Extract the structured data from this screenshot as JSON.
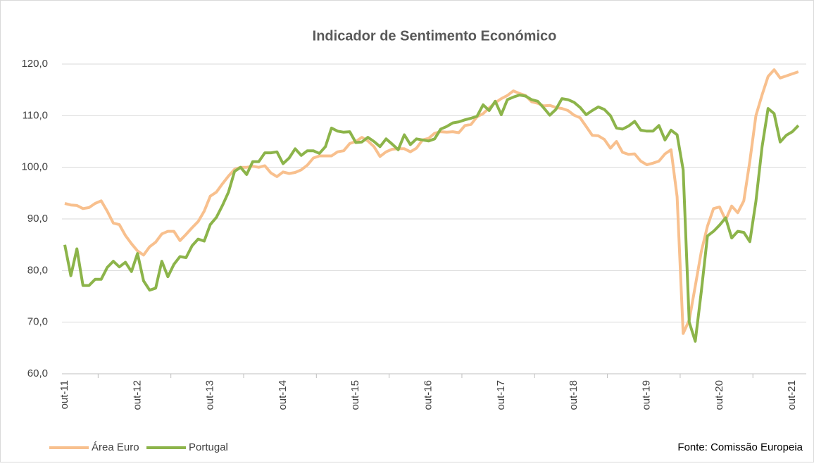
{
  "chart_data": {
    "type": "line",
    "title": "Indicador de Sentimento Económico",
    "source": "Fonte: Comissão Europeia",
    "categories": [
      "out-11",
      null,
      null,
      null,
      null,
      null,
      null,
      null,
      null,
      null,
      null,
      null,
      "out-12",
      null,
      null,
      null,
      null,
      null,
      null,
      null,
      null,
      null,
      null,
      null,
      "out-13",
      null,
      null,
      null,
      null,
      null,
      null,
      null,
      null,
      null,
      null,
      null,
      "out-14",
      null,
      null,
      null,
      null,
      null,
      null,
      null,
      null,
      null,
      null,
      null,
      "out-15",
      null,
      null,
      null,
      null,
      null,
      null,
      null,
      null,
      null,
      null,
      null,
      "out-16",
      null,
      null,
      null,
      null,
      null,
      null,
      null,
      null,
      null,
      null,
      null,
      "out-17",
      null,
      null,
      null,
      null,
      null,
      null,
      null,
      null,
      null,
      null,
      null,
      "out-18",
      null,
      null,
      null,
      null,
      null,
      null,
      null,
      null,
      null,
      null,
      null,
      "out-19",
      null,
      null,
      null,
      null,
      null,
      null,
      null,
      null,
      null,
      null,
      null,
      "out-20",
      null,
      null,
      null,
      null,
      null,
      null,
      null,
      null,
      null,
      null,
      null,
      "out-21",
      null
    ],
    "series": [
      {
        "name": "Área Euro",
        "color": "#f8c08e",
        "values": [
          93.0,
          92.7,
          92.6,
          92.0,
          92.2,
          93.0,
          93.5,
          91.5,
          89.2,
          88.9,
          86.8,
          85.2,
          83.8,
          83.0,
          84.6,
          85.5,
          87.1,
          87.6,
          87.6,
          85.8,
          87.0,
          88.3,
          89.5,
          91.5,
          94.4,
          95.2,
          96.8,
          98.3,
          99.6,
          100.0,
          100.0,
          100.2,
          100.0,
          100.3,
          98.9,
          98.2,
          99.1,
          98.8,
          99.0,
          99.5,
          100.4,
          101.8,
          102.2,
          102.2,
          102.2,
          103.0,
          103.2,
          104.6,
          105.0,
          105.8,
          105.1,
          104.0,
          102.1,
          103.0,
          103.5,
          103.6,
          103.6,
          103.0,
          103.7,
          105.3,
          105.6,
          106.6,
          106.9,
          106.8,
          106.9,
          106.7,
          108.1,
          108.3,
          109.8,
          110.4,
          111.5,
          112.5,
          113.3,
          113.9,
          114.8,
          114.3,
          113.9,
          112.7,
          112.4,
          111.9,
          112.0,
          111.6,
          111.4,
          111.0,
          110.1,
          109.6,
          107.9,
          106.2,
          106.1,
          105.4,
          103.7,
          105.0,
          102.9,
          102.5,
          102.6,
          101.2,
          100.5,
          100.8,
          101.2,
          102.6,
          103.4,
          94.3,
          67.8,
          70.4,
          77.0,
          83.7,
          88.6,
          92.0,
          92.3,
          89.8,
          92.5,
          91.2,
          93.5,
          101.2,
          110.0,
          114.0,
          117.6,
          118.9,
          117.3,
          117.7,
          118.1,
          118.5
        ]
      },
      {
        "name": "Portugal",
        "color": "#8cb44a",
        "values": [
          85.0,
          79.0,
          84.2,
          77.1,
          77.1,
          78.3,
          78.3,
          80.6,
          81.8,
          80.7,
          81.6,
          79.8,
          83.3,
          78.0,
          76.2,
          76.6,
          81.8,
          78.8,
          81.2,
          82.7,
          82.5,
          84.8,
          86.1,
          85.7,
          88.9,
          90.3,
          92.6,
          95.2,
          99.2,
          100.0,
          98.6,
          101.1,
          101.1,
          102.8,
          102.8,
          103.0,
          100.7,
          101.8,
          103.6,
          102.3,
          103.2,
          103.2,
          102.7,
          104.0,
          107.6,
          107.0,
          106.8,
          106.9,
          104.8,
          104.9,
          105.8,
          105.0,
          104.0,
          105.5,
          104.5,
          103.4,
          106.3,
          104.4,
          105.5,
          105.3,
          105.1,
          105.5,
          107.4,
          107.9,
          108.6,
          108.8,
          109.2,
          109.5,
          109.9,
          112.1,
          111.0,
          112.8,
          110.2,
          113.1,
          113.6,
          114.0,
          113.8,
          113.1,
          112.8,
          111.5,
          110.1,
          111.2,
          113.3,
          113.1,
          112.6,
          111.6,
          110.2,
          111.0,
          111.7,
          111.2,
          110.0,
          107.6,
          107.4,
          108.0,
          108.9,
          107.2,
          107.0,
          107.0,
          108.1,
          105.3,
          107.2,
          106.3,
          99.5,
          70.0,
          66.3,
          76.0,
          86.7,
          87.6,
          88.8,
          90.2,
          86.3,
          87.6,
          87.4,
          85.6,
          93.4,
          103.9,
          111.4,
          110.4,
          104.9,
          106.2,
          106.9,
          108.1
        ]
      }
    ],
    "ylim": [
      60,
      120
    ],
    "yticks": [
      {
        "value": 60,
        "label": "60,0"
      },
      {
        "value": 70,
        "label": "70,0"
      },
      {
        "value": 80,
        "label": "80,0"
      },
      {
        "value": 90,
        "label": "90,0"
      },
      {
        "value": 100,
        "label": "100,0"
      },
      {
        "value": 110,
        "label": "110,0"
      },
      {
        "value": 120,
        "label": "120,0"
      }
    ],
    "grid": true,
    "legend": "bottom-left"
  }
}
